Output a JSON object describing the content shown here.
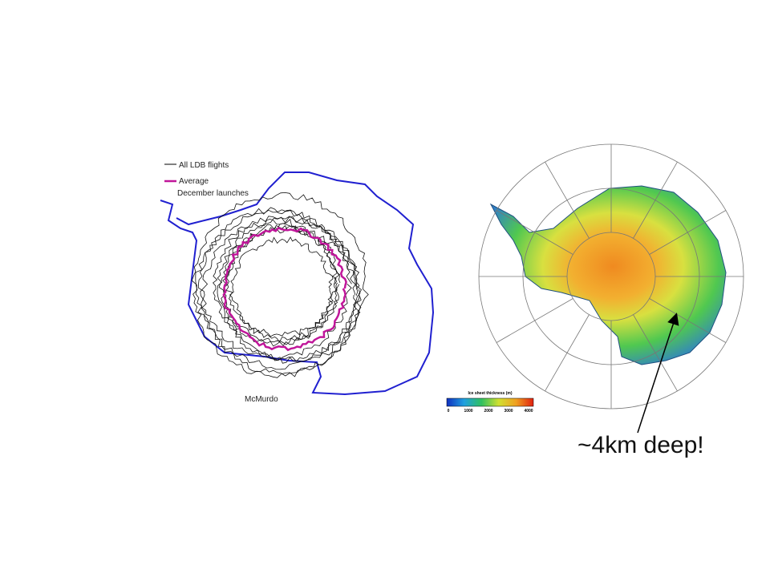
{
  "left_figure": {
    "legend": [
      {
        "label": "All LDB flights"
      },
      {
        "label": "Average"
      },
      {
        "label": "December launches"
      }
    ],
    "station_label": "McMurdo"
  },
  "right_figure": {
    "colorbar": {
      "title": "Ice sheet thickness (m)",
      "labels": [
        0,
        1000,
        2000,
        3000,
        4000
      ]
    }
  },
  "annotation": "~4km deep!"
}
